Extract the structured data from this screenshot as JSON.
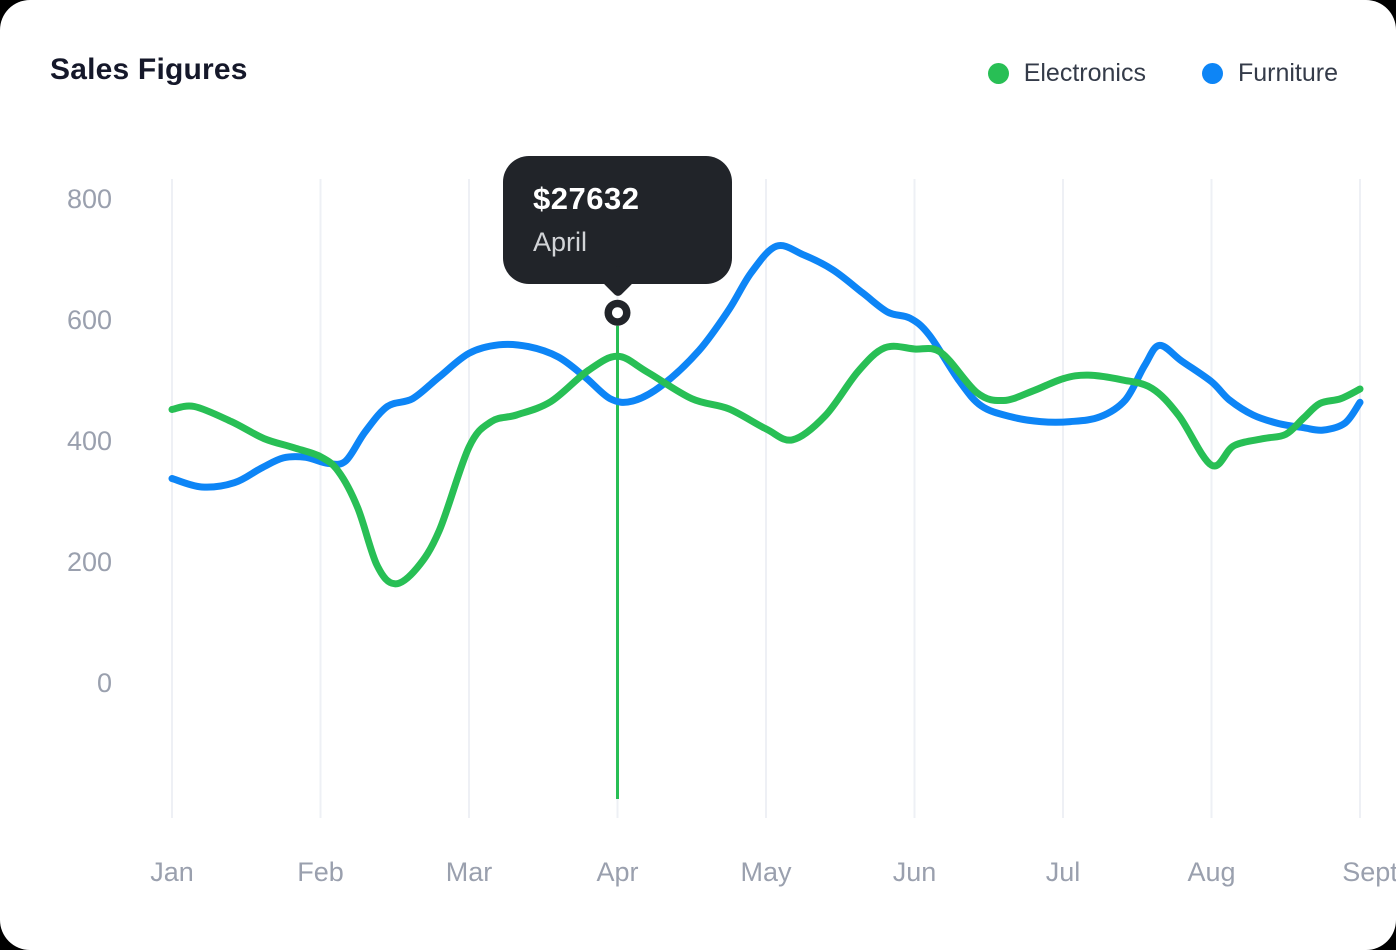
{
  "window": {
    "background": "#000000",
    "card_background": "#ffffff"
  },
  "header": {
    "title": "Sales Figures",
    "legend": [
      {
        "label": "Electronics",
        "color": "#28bf55"
      },
      {
        "label": "Furniture",
        "color": "#0d85f6"
      }
    ]
  },
  "tooltip": {
    "value": "$27632",
    "label": "April",
    "background": "#212429",
    "text_color": "#ffffff",
    "secondary_text_color": "#d2d4d7",
    "anchor_month": "Apr",
    "anchor_month_index": 3,
    "marker_value": 612
  },
  "chart_data": {
    "type": "line",
    "title": "Sales Figures",
    "categories": [
      "Jan",
      "Feb",
      "Mar",
      "Apr",
      "May",
      "Jun",
      "Jul",
      "Aug",
      "Sept"
    ],
    "y_axis": {
      "ticks": [
        0,
        200,
        400,
        600,
        800
      ],
      "label_color": "#9aa0ae"
    },
    "x_axis": {
      "label_color": "#9aa0ae"
    },
    "ylim": [
      -220,
      830
    ],
    "grid": {
      "vertical": true,
      "horizontal": false,
      "color": "#eef0f5"
    },
    "legend_position": "top-right",
    "line_width": 7,
    "series": [
      {
        "name": "Electronics",
        "color": "#28bf55",
        "monthly_values": [
          452,
          374,
          390,
          540,
          420,
          551,
          503,
          360,
          486
        ],
        "samples": [
          [
            0,
            452
          ],
          [
            0.15,
            457
          ],
          [
            0.4,
            432
          ],
          [
            0.62,
            404
          ],
          [
            0.82,
            389
          ],
          [
            1,
            374
          ],
          [
            1.12,
            350
          ],
          [
            1.25,
            290
          ],
          [
            1.38,
            195
          ],
          [
            1.5,
            164
          ],
          [
            1.65,
            190
          ],
          [
            1.8,
            252
          ],
          [
            2,
            390
          ],
          [
            2.15,
            432
          ],
          [
            2.32,
            443
          ],
          [
            2.55,
            465
          ],
          [
            2.8,
            516
          ],
          [
            3,
            540
          ],
          [
            3.2,
            514
          ],
          [
            3.5,
            470
          ],
          [
            3.75,
            453
          ],
          [
            4,
            420
          ],
          [
            4.18,
            402
          ],
          [
            4.4,
            442
          ],
          [
            4.62,
            515
          ],
          [
            4.8,
            554
          ],
          [
            5,
            552
          ],
          [
            5.18,
            546
          ],
          [
            5.42,
            480
          ],
          [
            5.6,
            467
          ],
          [
            5.8,
            483
          ],
          [
            6,
            503
          ],
          [
            6.17,
            509
          ],
          [
            6.4,
            501
          ],
          [
            6.6,
            487
          ],
          [
            6.78,
            442
          ],
          [
            7,
            360
          ],
          [
            7.15,
            392
          ],
          [
            7.35,
            404
          ],
          [
            7.5,
            411
          ],
          [
            7.62,
            438
          ],
          [
            7.73,
            462
          ],
          [
            7.87,
            470
          ],
          [
            8,
            486
          ]
        ]
      },
      {
        "name": "Furniture",
        "color": "#0d85f6",
        "monthly_values": [
          338,
          368,
          545,
          467,
          718,
          595,
          433,
          498,
          464
        ],
        "samples": [
          [
            0,
            338
          ],
          [
            0.2,
            324
          ],
          [
            0.42,
            331
          ],
          [
            0.6,
            355
          ],
          [
            0.75,
            372
          ],
          [
            0.9,
            373
          ],
          [
            1.05,
            363
          ],
          [
            1.17,
            367
          ],
          [
            1.3,
            415
          ],
          [
            1.45,
            457
          ],
          [
            1.62,
            470
          ],
          [
            1.8,
            506
          ],
          [
            2,
            545
          ],
          [
            2.2,
            559
          ],
          [
            2.4,
            556
          ],
          [
            2.6,
            539
          ],
          [
            2.78,
            506
          ],
          [
            2.95,
            470
          ],
          [
            3.1,
            466
          ],
          [
            3.3,
            492
          ],
          [
            3.55,
            550
          ],
          [
            3.75,
            617
          ],
          [
            3.9,
            678
          ],
          [
            4.07,
            722
          ],
          [
            4.25,
            708
          ],
          [
            4.45,
            683
          ],
          [
            4.65,
            645
          ],
          [
            4.82,
            613
          ],
          [
            4.97,
            603
          ],
          [
            5.1,
            575
          ],
          [
            5.3,
            500
          ],
          [
            5.45,
            458
          ],
          [
            5.65,
            440
          ],
          [
            5.85,
            432
          ],
          [
            6.05,
            432
          ],
          [
            6.25,
            440
          ],
          [
            6.42,
            468
          ],
          [
            6.55,
            525
          ],
          [
            6.65,
            558
          ],
          [
            6.8,
            532
          ],
          [
            7,
            498
          ],
          [
            7.12,
            468
          ],
          [
            7.28,
            443
          ],
          [
            7.45,
            429
          ],
          [
            7.62,
            422
          ],
          [
            7.75,
            418
          ],
          [
            7.9,
            430
          ],
          [
            8,
            464
          ]
        ]
      }
    ]
  }
}
